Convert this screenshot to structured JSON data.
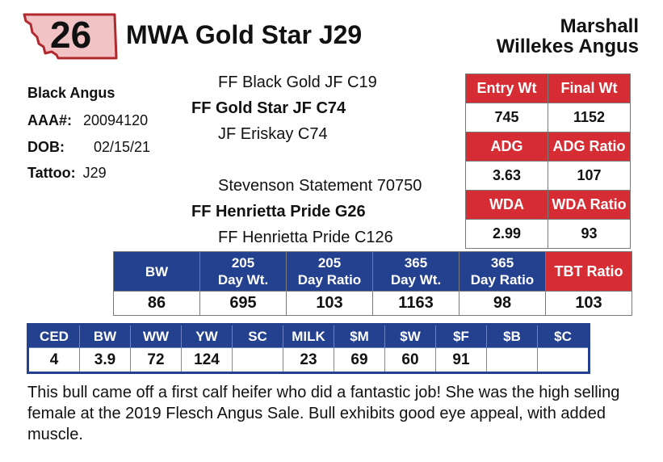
{
  "lot": "26",
  "title": "MWA Gold Star J29",
  "farm": {
    "line1": "Marshall",
    "line2": "Willekes Angus"
  },
  "animal": {
    "breed": "Black Angus",
    "aaa_label": "AAA#:",
    "aaa_value": "20094120",
    "dob_label": "DOB:",
    "dob_value": "02/15/21",
    "tattoo_label": "Tattoo:",
    "tattoo_value": "J29"
  },
  "pedigree": {
    "sire_sire": "FF Black Gold JF C19",
    "sire": "FF Gold Star JF C74",
    "sire_dam": "JF Eriskay C74",
    "dam_sire": "Stevenson Statement 70750",
    "dam": "FF Henrietta Pride G26",
    "dam_dam": "FF Henrietta Pride C126"
  },
  "test": {
    "entry_wt_label": "Entry Wt",
    "entry_wt": "745",
    "final_wt_label": "Final Wt",
    "final_wt": "1152",
    "adg_label": "ADG",
    "adg": "3.63",
    "adg_ratio_label": "ADG Ratio",
    "adg_ratio": "107",
    "wda_label": "WDA",
    "wda": "2.99",
    "wda_ratio_label": "WDA Ratio",
    "wda_ratio": "93"
  },
  "weights": {
    "headers": [
      {
        "l1": "BW",
        "l2": ""
      },
      {
        "l1": "205",
        "l2": "Day Wt."
      },
      {
        "l1": "205",
        "l2": "Day Ratio"
      },
      {
        "l1": "365",
        "l2": "Day Wt."
      },
      {
        "l1": "365",
        "l2": "Day Ratio"
      }
    ],
    "tbt_label": "TBT Ratio",
    "values": [
      "86",
      "695",
      "103",
      "1163",
      "98",
      "103"
    ]
  },
  "epds": {
    "headers": [
      "CED",
      "BW",
      "WW",
      "YW",
      "SC",
      "MILK",
      "$M",
      "$W",
      "$F",
      "$B",
      "$C"
    ],
    "values": [
      "4",
      "3.9",
      "72",
      "124",
      "",
      "23",
      "69",
      "60",
      "91",
      "",
      ""
    ]
  },
  "description": "This bull came off a first calf heifer who did a fantastic job! She was the high selling female at the 2019 Flesch Angus Sale. Bull exhibits good eye appeal, with added muscle.",
  "colors": {
    "red": "#d62d35",
    "blue": "#24418f",
    "state_fill": "#f2c3c4",
    "state_outline": "#b0292e"
  },
  "icons": {
    "state": "montana-state-icon"
  }
}
